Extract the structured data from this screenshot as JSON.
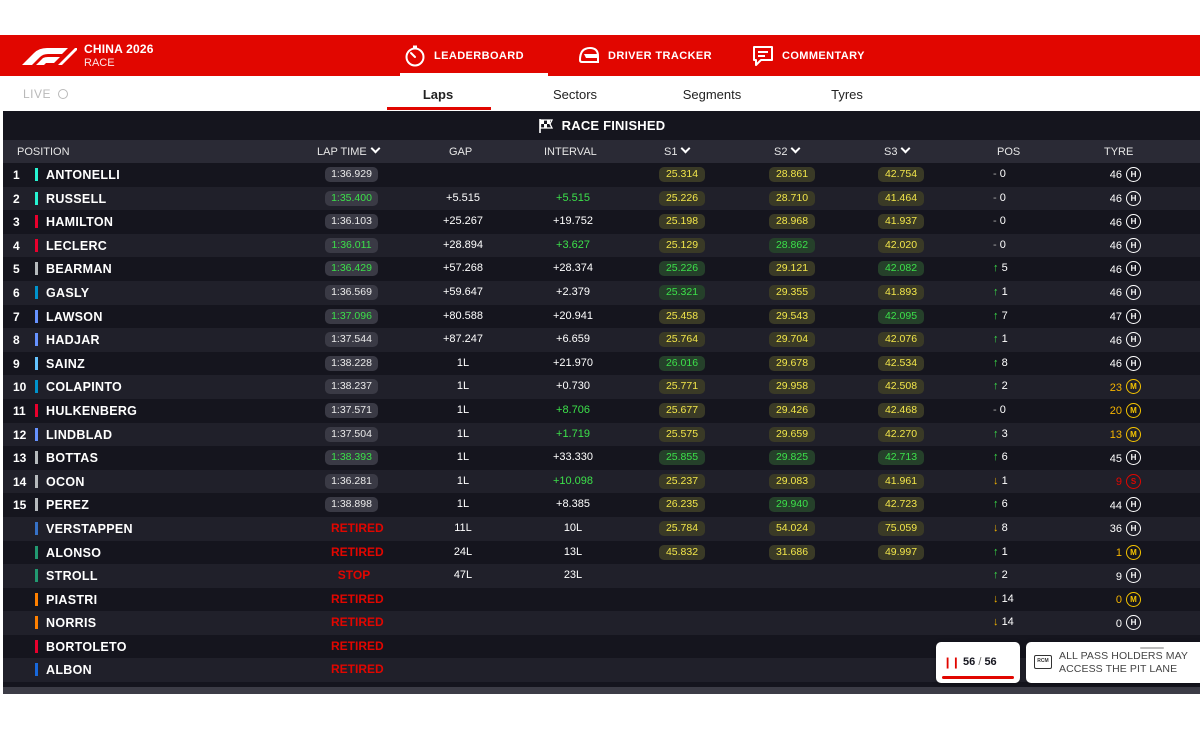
{
  "header": {
    "brand_title": "CHINA 2026",
    "brand_sub": "RACE",
    "nav": [
      {
        "label": "LEADERBOARD",
        "icon": "stopwatch-icon",
        "active": true
      },
      {
        "label": "DRIVER TRACKER",
        "icon": "helmet-icon",
        "active": false
      },
      {
        "label": "COMMENTARY",
        "icon": "chat-icon",
        "active": false
      }
    ]
  },
  "subnav": {
    "live_label": "LIVE",
    "tabs": [
      {
        "label": "Laps",
        "active": true
      },
      {
        "label": "Sectors",
        "active": false
      },
      {
        "label": "Segments",
        "active": false
      },
      {
        "label": "Tyres",
        "active": false
      }
    ]
  },
  "board": {
    "status": "RACE FINISHED",
    "columns": {
      "position": "POSITION",
      "lap_time": "LAP TIME",
      "gap": "GAP",
      "interval": "INTERVAL",
      "s1": "S1",
      "s2": "S2",
      "s3": "S3",
      "pos": "POS",
      "tyre": "TYRE"
    },
    "rows": [
      {
        "pos": "1",
        "name": "ANTONELLI",
        "team": "#27f4d2",
        "lap": "1:36.929",
        "lap_c": "",
        "gap": "",
        "int": "",
        "int_c": "",
        "s1": "25.314",
        "s1c": "y",
        "s2": "28.861",
        "s2c": "y",
        "s3": "42.754",
        "s3c": "y",
        "dir": "same",
        "chg": "0",
        "tl": "46",
        "tlc": "",
        "ty": "H"
      },
      {
        "pos": "2",
        "name": "RUSSELL",
        "team": "#27f4d2",
        "lap": "1:35.400",
        "lap_c": "pb",
        "gap": "+5.515",
        "int": "+5.515",
        "int_c": "pb",
        "s1": "25.226",
        "s1c": "y",
        "s2": "28.710",
        "s2c": "y",
        "s3": "41.464",
        "s3c": "y",
        "dir": "same",
        "chg": "0",
        "tl": "46",
        "tlc": "",
        "ty": "H"
      },
      {
        "pos": "3",
        "name": "HAMILTON",
        "team": "#e8002d",
        "lap": "1:36.103",
        "lap_c": "",
        "gap": "+25.267",
        "int": "+19.752",
        "int_c": "",
        "s1": "25.198",
        "s1c": "y",
        "s2": "28.968",
        "s2c": "y",
        "s3": "41.937",
        "s3c": "y",
        "dir": "same",
        "chg": "0",
        "tl": "46",
        "tlc": "",
        "ty": "H"
      },
      {
        "pos": "4",
        "name": "LECLERC",
        "team": "#e8002d",
        "lap": "1:36.011",
        "lap_c": "pb",
        "gap": "+28.894",
        "int": "+3.627",
        "int_c": "pb",
        "s1": "25.129",
        "s1c": "y",
        "s2": "28.862",
        "s2c": "g",
        "s3": "42.020",
        "s3c": "y",
        "dir": "same",
        "chg": "0",
        "tl": "46",
        "tlc": "",
        "ty": "H"
      },
      {
        "pos": "5",
        "name": "BEARMAN",
        "team": "#b6babd",
        "lap": "1:36.429",
        "lap_c": "pb",
        "gap": "+57.268",
        "int": "+28.374",
        "int_c": "",
        "s1": "25.226",
        "s1c": "g",
        "s2": "29.121",
        "s2c": "y",
        "s3": "42.082",
        "s3c": "g",
        "dir": "up",
        "chg": "5",
        "tl": "46",
        "tlc": "",
        "ty": "H"
      },
      {
        "pos": "6",
        "name": "GASLY",
        "team": "#0093cc",
        "lap": "1:36.569",
        "lap_c": "",
        "gap": "+59.647",
        "int": "+2.379",
        "int_c": "",
        "s1": "25.321",
        "s1c": "g",
        "s2": "29.355",
        "s2c": "y",
        "s3": "41.893",
        "s3c": "y",
        "dir": "up",
        "chg": "1",
        "tl": "46",
        "tlc": "",
        "ty": "H"
      },
      {
        "pos": "7",
        "name": "LAWSON",
        "team": "#6692ff",
        "lap": "1:37.096",
        "lap_c": "pb",
        "gap": "+80.588",
        "int": "+20.941",
        "int_c": "",
        "s1": "25.458",
        "s1c": "y",
        "s2": "29.543",
        "s2c": "y",
        "s3": "42.095",
        "s3c": "g",
        "dir": "up",
        "chg": "7",
        "tl": "47",
        "tlc": "",
        "ty": "H"
      },
      {
        "pos": "8",
        "name": "HADJAR",
        "team": "#6692ff",
        "lap": "1:37.544",
        "lap_c": "",
        "gap": "+87.247",
        "int": "+6.659",
        "int_c": "",
        "s1": "25.764",
        "s1c": "y",
        "s2": "29.704",
        "s2c": "y",
        "s3": "42.076",
        "s3c": "y",
        "dir": "up",
        "chg": "1",
        "tl": "46",
        "tlc": "",
        "ty": "H"
      },
      {
        "pos": "9",
        "name": "SAINZ",
        "team": "#64c4ff",
        "lap": "1:38.228",
        "lap_c": "",
        "gap": "1L",
        "int": "+21.970",
        "int_c": "",
        "s1": "26.016",
        "s1c": "g",
        "s2": "29.678",
        "s2c": "y",
        "s3": "42.534",
        "s3c": "y",
        "dir": "up",
        "chg": "8",
        "tl": "46",
        "tlc": "",
        "ty": "H"
      },
      {
        "pos": "10",
        "name": "COLAPINTO",
        "team": "#0093cc",
        "lap": "1:38.237",
        "lap_c": "",
        "gap": "1L",
        "int": "+0.730",
        "int_c": "",
        "s1": "25.771",
        "s1c": "y",
        "s2": "29.958",
        "s2c": "y",
        "s3": "42.508",
        "s3c": "y",
        "dir": "up",
        "chg": "2",
        "tl": "23",
        "tlc": "yel",
        "ty": "M"
      },
      {
        "pos": "11",
        "name": "HULKENBERG",
        "team": "#e8002d",
        "lap": "1:37.571",
        "lap_c": "",
        "gap": "1L",
        "int": "+8.706",
        "int_c": "pb",
        "s1": "25.677",
        "s1c": "y",
        "s2": "29.426",
        "s2c": "y",
        "s3": "42.468",
        "s3c": "y",
        "dir": "same",
        "chg": "0",
        "tl": "20",
        "tlc": "yel",
        "ty": "M"
      },
      {
        "pos": "12",
        "name": "LINDBLAD",
        "team": "#6692ff",
        "lap": "1:37.504",
        "lap_c": "",
        "gap": "1L",
        "int": "+1.719",
        "int_c": "pb",
        "s1": "25.575",
        "s1c": "y",
        "s2": "29.659",
        "s2c": "y",
        "s3": "42.270",
        "s3c": "y",
        "dir": "up",
        "chg": "3",
        "tl": "13",
        "tlc": "yel",
        "ty": "M"
      },
      {
        "pos": "13",
        "name": "BOTTAS",
        "team": "#b6babd",
        "lap": "1:38.393",
        "lap_c": "pb",
        "gap": "1L",
        "int": "+33.330",
        "int_c": "",
        "s1": "25.855",
        "s1c": "g",
        "s2": "29.825",
        "s2c": "g",
        "s3": "42.713",
        "s3c": "g",
        "dir": "up",
        "chg": "6",
        "tl": "45",
        "tlc": "",
        "ty": "H"
      },
      {
        "pos": "14",
        "name": "OCON",
        "team": "#b6babd",
        "lap": "1:36.281",
        "lap_c": "",
        "gap": "1L",
        "int": "+10.098",
        "int_c": "pb",
        "s1": "25.237",
        "s1c": "y",
        "s2": "29.083",
        "s2c": "y",
        "s3": "41.961",
        "s3c": "y",
        "dir": "down",
        "chg": "1",
        "tl": "9",
        "tlc": "red",
        "ty": "S"
      },
      {
        "pos": "15",
        "name": "PEREZ",
        "team": "#b6babd",
        "lap": "1:38.898",
        "lap_c": "",
        "gap": "1L",
        "int": "+8.385",
        "int_c": "",
        "s1": "26.235",
        "s1c": "y",
        "s2": "29.940",
        "s2c": "g",
        "s3": "42.723",
        "s3c": "y",
        "dir": "up",
        "chg": "6",
        "tl": "44",
        "tlc": "",
        "ty": "H"
      },
      {
        "pos": "",
        "name": "VERSTAPPEN",
        "team": "#3671c6",
        "lap": "RETIRED",
        "lap_c": "ret",
        "gap": "11L",
        "int": "10L",
        "int_c": "",
        "s1": "25.784",
        "s1c": "y",
        "s2": "54.024",
        "s2c": "y",
        "s3": "75.059",
        "s3c": "y",
        "dir": "down",
        "chg": "8",
        "tl": "36",
        "tlc": "",
        "ty": "H"
      },
      {
        "pos": "",
        "name": "ALONSO",
        "team": "#229971",
        "lap": "RETIRED",
        "lap_c": "ret",
        "gap": "24L",
        "int": "13L",
        "int_c": "",
        "s1": "45.832",
        "s1c": "y",
        "s2": "31.686",
        "s2c": "y",
        "s3": "49.997",
        "s3c": "y",
        "dir": "up",
        "chg": "1",
        "tl": "1",
        "tlc": "yel",
        "ty": "M"
      },
      {
        "pos": "",
        "name": "STROLL",
        "team": "#229971",
        "lap": "STOP",
        "lap_c": "ret",
        "gap": "47L",
        "int": "23L",
        "int_c": "",
        "s1": "",
        "s1c": "",
        "s2": "",
        "s2c": "",
        "s3": "",
        "s3c": "",
        "dir": "up",
        "chg": "2",
        "tl": "9",
        "tlc": "",
        "ty": "H"
      },
      {
        "pos": "",
        "name": "PIASTRI",
        "team": "#ff8000",
        "lap": "RETIRED",
        "lap_c": "ret",
        "gap": "",
        "int": "",
        "int_c": "",
        "s1": "",
        "s1c": "",
        "s2": "",
        "s2c": "",
        "s3": "",
        "s3c": "",
        "dir": "down",
        "chg": "14",
        "tl": "0",
        "tlc": "yel",
        "ty": "M"
      },
      {
        "pos": "",
        "name": "NORRIS",
        "team": "#ff8000",
        "lap": "RETIRED",
        "lap_c": "ret",
        "gap": "",
        "int": "",
        "int_c": "",
        "s1": "",
        "s1c": "",
        "s2": "",
        "s2c": "",
        "s3": "",
        "s3c": "",
        "dir": "down",
        "chg": "14",
        "tl": "0",
        "tlc": "",
        "ty": "H"
      },
      {
        "pos": "",
        "name": "BORTOLETO",
        "team": "#e8002d",
        "lap": "RETIRED",
        "lap_c": "ret",
        "gap": "",
        "int": "",
        "int_c": "",
        "s1": "",
        "s1c": "",
        "s2": "",
        "s2c": "",
        "s3": "",
        "s3c": "",
        "dir": "",
        "chg": "",
        "tl": "",
        "tlc": "",
        "ty": ""
      },
      {
        "pos": "",
        "name": "ALBON",
        "team": "#1868db",
        "lap": "RETIRED",
        "lap_c": "ret",
        "gap": "",
        "int": "",
        "int_c": "",
        "s1": "",
        "s1c": "",
        "s2": "",
        "s2c": "",
        "s3": "",
        "s3c": "",
        "dir": "",
        "chg": "",
        "tl": "",
        "tlc": "",
        "ty": ""
      }
    ]
  },
  "lap_counter": {
    "current": "56",
    "separator": "/",
    "total": "56",
    "progress": 1.0
  },
  "rcm": {
    "icon_label": "RCM",
    "message": "ALL PASS HOLDERS MAY ACCESS THE PIT LANE"
  },
  "colors": {
    "brand_red": "#e10600",
    "board_bg": "#15151e",
    "personal_best": "#3ce04a",
    "sector_yellow": "#f2e64a"
  }
}
